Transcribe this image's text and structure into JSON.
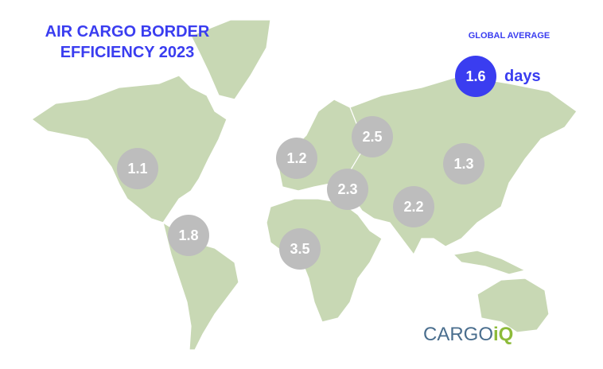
{
  "title": [
    "AIR CARGO BORDER",
    "EFFICIENCY 2023"
  ],
  "global_average": {
    "label": "GLOBAL AVERAGE",
    "value": 1.6,
    "unit": "days"
  },
  "regions": [
    1.1,
    1.2,
    2.5,
    1.3,
    2.3,
    2.2,
    1.8,
    3.5
  ],
  "logo": {
    "text": "CARGO",
    "accent": "iQ"
  }
}
